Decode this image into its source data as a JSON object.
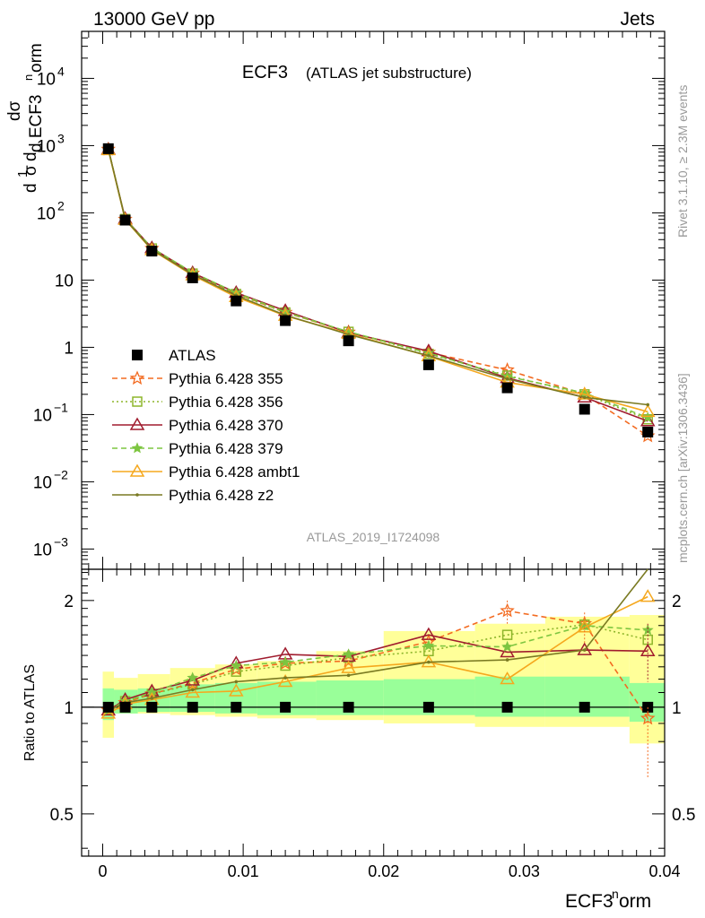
{
  "header": {
    "energy_label": "13000 GeV pp",
    "process_label": "Jets",
    "plot_title": "ECF3",
    "plot_subtitle": "(ATLAS jet substructure)",
    "analysis_label": "ATLAS_2019_I1724098",
    "side_rivet": "Rivet 3.1.10, ≥ 2.3M events",
    "side_mcplots": "mcplots.cern.ch [arXiv:1306.3436]"
  },
  "chart_data": {
    "type": "scatter",
    "title": "ECF3 (ATLAS jet substructure)",
    "xlabel": "ECF3^norm",
    "ylabel": "1/σ dσ/d ECF3^norm",
    "ratio_ylabel": "Ratio to ATLAS",
    "xlim": [
      -0.0015,
      0.04
    ],
    "ylim": [
      0.0005,
      50000
    ],
    "yscale": "log",
    "ratio_ylim": [
      0.38,
      2.45
    ],
    "ratio_yscale": "log",
    "x_ticks": [
      "0",
      "0.01",
      "0.02",
      "0.03",
      "0.04"
    ],
    "y_ticks": [
      "10^-3",
      "10^-2",
      "10^-1",
      "1",
      "10",
      "10^2",
      "10^3",
      "10^4"
    ],
    "ratio_ticks": [
      "0.5",
      "1",
      "2"
    ],
    "legend_position": "middle-left",
    "x": [
      0.0004,
      0.0016,
      0.0035,
      0.0064,
      0.0095,
      0.013,
      0.0175,
      0.0232,
      0.0288,
      0.0343,
      0.0388
    ],
    "ratio_band_edges": [
      0.0,
      0.0008,
      0.0025,
      0.0048,
      0.008,
      0.011,
      0.0152,
      0.02,
      0.0265,
      0.0315,
      0.0375,
      0.04
    ],
    "ratio_band_inner": [
      [
        0.92,
        1.13
      ],
      [
        0.96,
        1.12
      ],
      [
        0.97,
        1.13
      ],
      [
        0.97,
        1.16
      ],
      [
        0.96,
        1.17
      ],
      [
        0.95,
        1.18
      ],
      [
        0.95,
        1.19
      ],
      [
        0.95,
        1.2
      ],
      [
        0.94,
        1.22
      ],
      [
        0.94,
        1.22
      ],
      [
        0.91,
        1.17
      ]
    ],
    "ratio_band_outer": [
      [
        0.82,
        1.26
      ],
      [
        0.96,
        1.21
      ],
      [
        0.96,
        1.24
      ],
      [
        0.95,
        1.29
      ],
      [
        0.94,
        1.32
      ],
      [
        0.93,
        1.35
      ],
      [
        0.92,
        1.44
      ],
      [
        0.9,
        1.64
      ],
      [
        0.88,
        1.72
      ],
      [
        0.88,
        1.8
      ],
      [
        0.79,
        1.82
      ]
    ],
    "series": [
      {
        "name": "ATLAS",
        "color": "#000000",
        "marker": "filled-square",
        "line": "none",
        "values": [
          900,
          78,
          27,
          10.8,
          4.9,
          2.5,
          1.25,
          0.55,
          0.25,
          0.12,
          0.055
        ],
        "ratio": [
          1,
          1,
          1,
          1,
          1,
          1,
          1,
          1,
          1,
          1,
          1
        ]
      },
      {
        "name": "Pythia 6.428 355",
        "color": "#f36b21",
        "marker": "open-star",
        "line": "dashed",
        "values": [
          880,
          80,
          29.5,
          12.6,
          6.3,
          3.3,
          1.68,
          0.84,
          0.46,
          0.2,
          0.048
        ],
        "ratio": [
          0.98,
          1.03,
          1.09,
          1.17,
          1.28,
          1.33,
          1.35,
          1.53,
          1.87,
          1.72,
          0.93
        ]
      },
      {
        "name": "Pythia 6.428 356",
        "color": "#8db52b",
        "marker": "open-square",
        "line": "dotted",
        "values": [
          885,
          81,
          29.5,
          12.5,
          6.2,
          3.3,
          1.7,
          0.8,
          0.38,
          0.2,
          0.085
        ],
        "ratio": [
          0.98,
          1.04,
          1.09,
          1.16,
          1.26,
          1.31,
          1.38,
          1.44,
          1.6,
          1.71,
          1.55
        ]
      },
      {
        "name": "Pythia 6.428 370",
        "color": "#a01c2e",
        "marker": "open-triangle",
        "line": "solid",
        "values": [
          880,
          82,
          30,
          12.8,
          6.5,
          3.5,
          1.65,
          0.88,
          0.35,
          0.18,
          0.08
        ],
        "ratio": [
          0.98,
          1.05,
          1.11,
          1.19,
          1.33,
          1.41,
          1.39,
          1.6,
          1.43,
          1.45,
          1.44
        ]
      },
      {
        "name": "Pythia 6.428 379",
        "color": "#7dc540",
        "marker": "filled-star",
        "line": "dashed",
        "values": [
          885,
          81,
          30,
          13,
          6.5,
          3.35,
          1.7,
          0.82,
          0.37,
          0.21,
          0.09
        ],
        "ratio": [
          0.98,
          1.04,
          1.1,
          1.21,
          1.31,
          1.34,
          1.41,
          1.49,
          1.48,
          1.7,
          1.65
        ]
      },
      {
        "name": "Pythia 6.428 ambt1",
        "color": "#f5a81e",
        "marker": "open-triangle",
        "line": "solid",
        "values": [
          860,
          79,
          28,
          11.8,
          5.6,
          2.95,
          1.6,
          0.74,
          0.3,
          0.2,
          0.11
        ],
        "ratio": [
          0.96,
          1.02,
          1.05,
          1.1,
          1.11,
          1.18,
          1.29,
          1.34,
          1.2,
          1.68,
          2.05
        ]
      },
      {
        "name": "Pythia 6.428 z2",
        "color": "#7a7a22",
        "marker": "dot",
        "line": "solid",
        "values": [
          880,
          80,
          28.5,
          12.1,
          5.9,
          3.0,
          1.55,
          0.75,
          0.34,
          0.18,
          0.14
        ],
        "ratio": [
          0.98,
          1.03,
          1.06,
          1.12,
          1.18,
          1.21,
          1.23,
          1.34,
          1.36,
          1.45,
          2.55
        ]
      }
    ]
  }
}
